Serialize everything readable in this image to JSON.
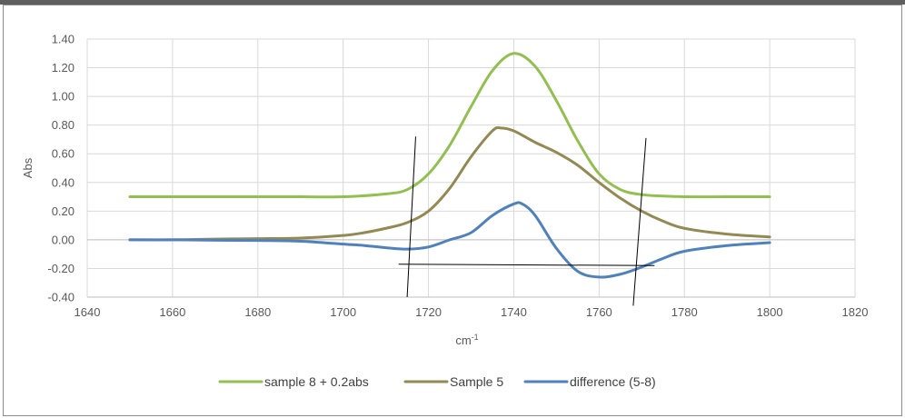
{
  "chart_data": {
    "type": "line",
    "xlabel": "cm",
    "xlabel_superscript": "-1",
    "ylabel": "Abs",
    "xlim": [
      1640,
      1820
    ],
    "ylim": [
      -0.4,
      1.4
    ],
    "x_ticks": [
      "1640",
      "1660",
      "1680",
      "1700",
      "1720",
      "1740",
      "1760",
      "1780",
      "1800",
      "1820"
    ],
    "y_ticks": [
      "-0.40",
      "-0.20",
      "0.00",
      "0.20",
      "0.40",
      "0.60",
      "0.80",
      "1.00",
      "1.20",
      "1.40"
    ],
    "grid": true,
    "legend": "bottom",
    "series": [
      {
        "name": "sample 8 + 0.2abs",
        "color": "#92c050",
        "x": [
          1650,
          1660,
          1670,
          1680,
          1689,
          1690,
          1700,
          1710,
          1715,
          1720,
          1725,
          1730,
          1735,
          1740,
          1745,
          1750,
          1755,
          1760,
          1765,
          1770,
          1775,
          1780,
          1790,
          1800
        ],
        "y": [
          0.3,
          0.3,
          0.3,
          0.3,
          0.3,
          0.3,
          0.3,
          0.32,
          0.35,
          0.46,
          0.66,
          0.93,
          1.18,
          1.3,
          1.21,
          0.97,
          0.69,
          0.46,
          0.35,
          0.315,
          0.305,
          0.3,
          0.3,
          0.3
        ]
      },
      {
        "name": "Sample 5",
        "color": "#938953",
        "x": [
          1650,
          1660,
          1670,
          1680,
          1690,
          1700,
          1705,
          1710,
          1715,
          1720,
          1725,
          1730,
          1735,
          1737,
          1740,
          1745,
          1750,
          1755,
          1760,
          1765,
          1770,
          1775,
          1780,
          1790,
          1800
        ],
        "y": [
          0.0,
          0.0,
          0.005,
          0.008,
          0.012,
          0.03,
          0.05,
          0.08,
          0.12,
          0.2,
          0.36,
          0.58,
          0.76,
          0.78,
          0.76,
          0.68,
          0.61,
          0.52,
          0.4,
          0.29,
          0.2,
          0.13,
          0.08,
          0.04,
          0.02
        ]
      },
      {
        "name": "difference (5-8)",
        "color": "#4f81bd",
        "x": [
          1650,
          1660,
          1670,
          1680,
          1690,
          1700,
          1705,
          1710,
          1715,
          1720,
          1725,
          1730,
          1735,
          1740,
          1742,
          1745,
          1750,
          1755,
          1760,
          1765,
          1770,
          1775,
          1780,
          1790,
          1800
        ],
        "y": [
          0.0,
          0.0,
          -0.003,
          -0.005,
          -0.01,
          -0.03,
          -0.04,
          -0.055,
          -0.065,
          -0.05,
          0.0,
          0.05,
          0.17,
          0.25,
          0.25,
          0.17,
          -0.06,
          -0.22,
          -0.26,
          -0.24,
          -0.19,
          -0.13,
          -0.08,
          -0.04,
          -0.02
        ]
      }
    ],
    "annotation_lines": [
      {
        "x": [
          1715,
          1717
        ],
        "y": [
          -0.4,
          0.72
        ]
      },
      {
        "x": [
          1768,
          1771
        ],
        "y": [
          -0.46,
          0.71
        ]
      },
      {
        "x": [
          1713,
          1773
        ],
        "y": [
          -0.17,
          -0.18
        ]
      }
    ]
  }
}
